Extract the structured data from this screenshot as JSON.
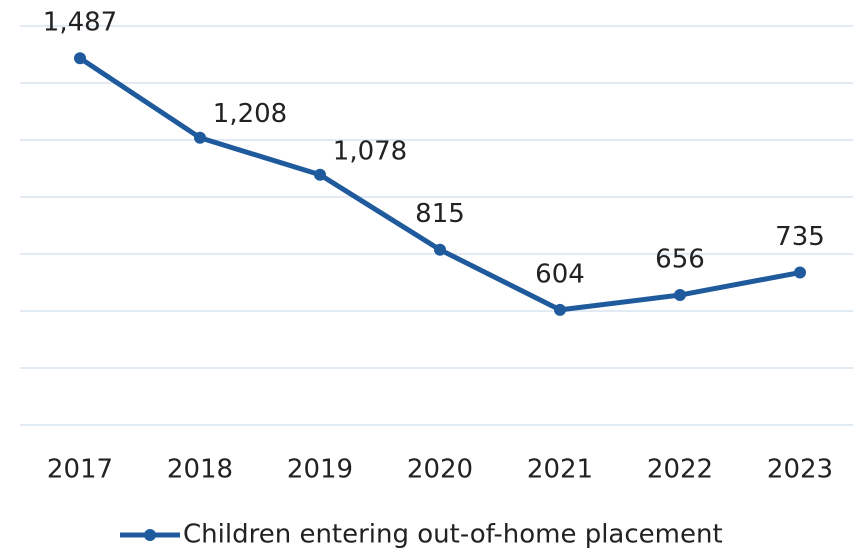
{
  "chart_data": {
    "type": "line",
    "categories": [
      "2017",
      "2018",
      "2019",
      "2020",
      "2021",
      "2022",
      "2023"
    ],
    "series": [
      {
        "name": "Children entering out-of-home placement",
        "color": "#1f5b9c",
        "values": [
          1487,
          1208,
          1078,
          815,
          604,
          656,
          735
        ],
        "value_labels": [
          "1,487",
          "1,208",
          "1,078",
          "815",
          "604",
          "656",
          "735"
        ]
      }
    ],
    "ylim": [
      200,
      1600
    ],
    "yticks": [
      200,
      400,
      600,
      800,
      1000,
      1200,
      1400,
      1600
    ],
    "grid": true,
    "legend": "bottom"
  }
}
